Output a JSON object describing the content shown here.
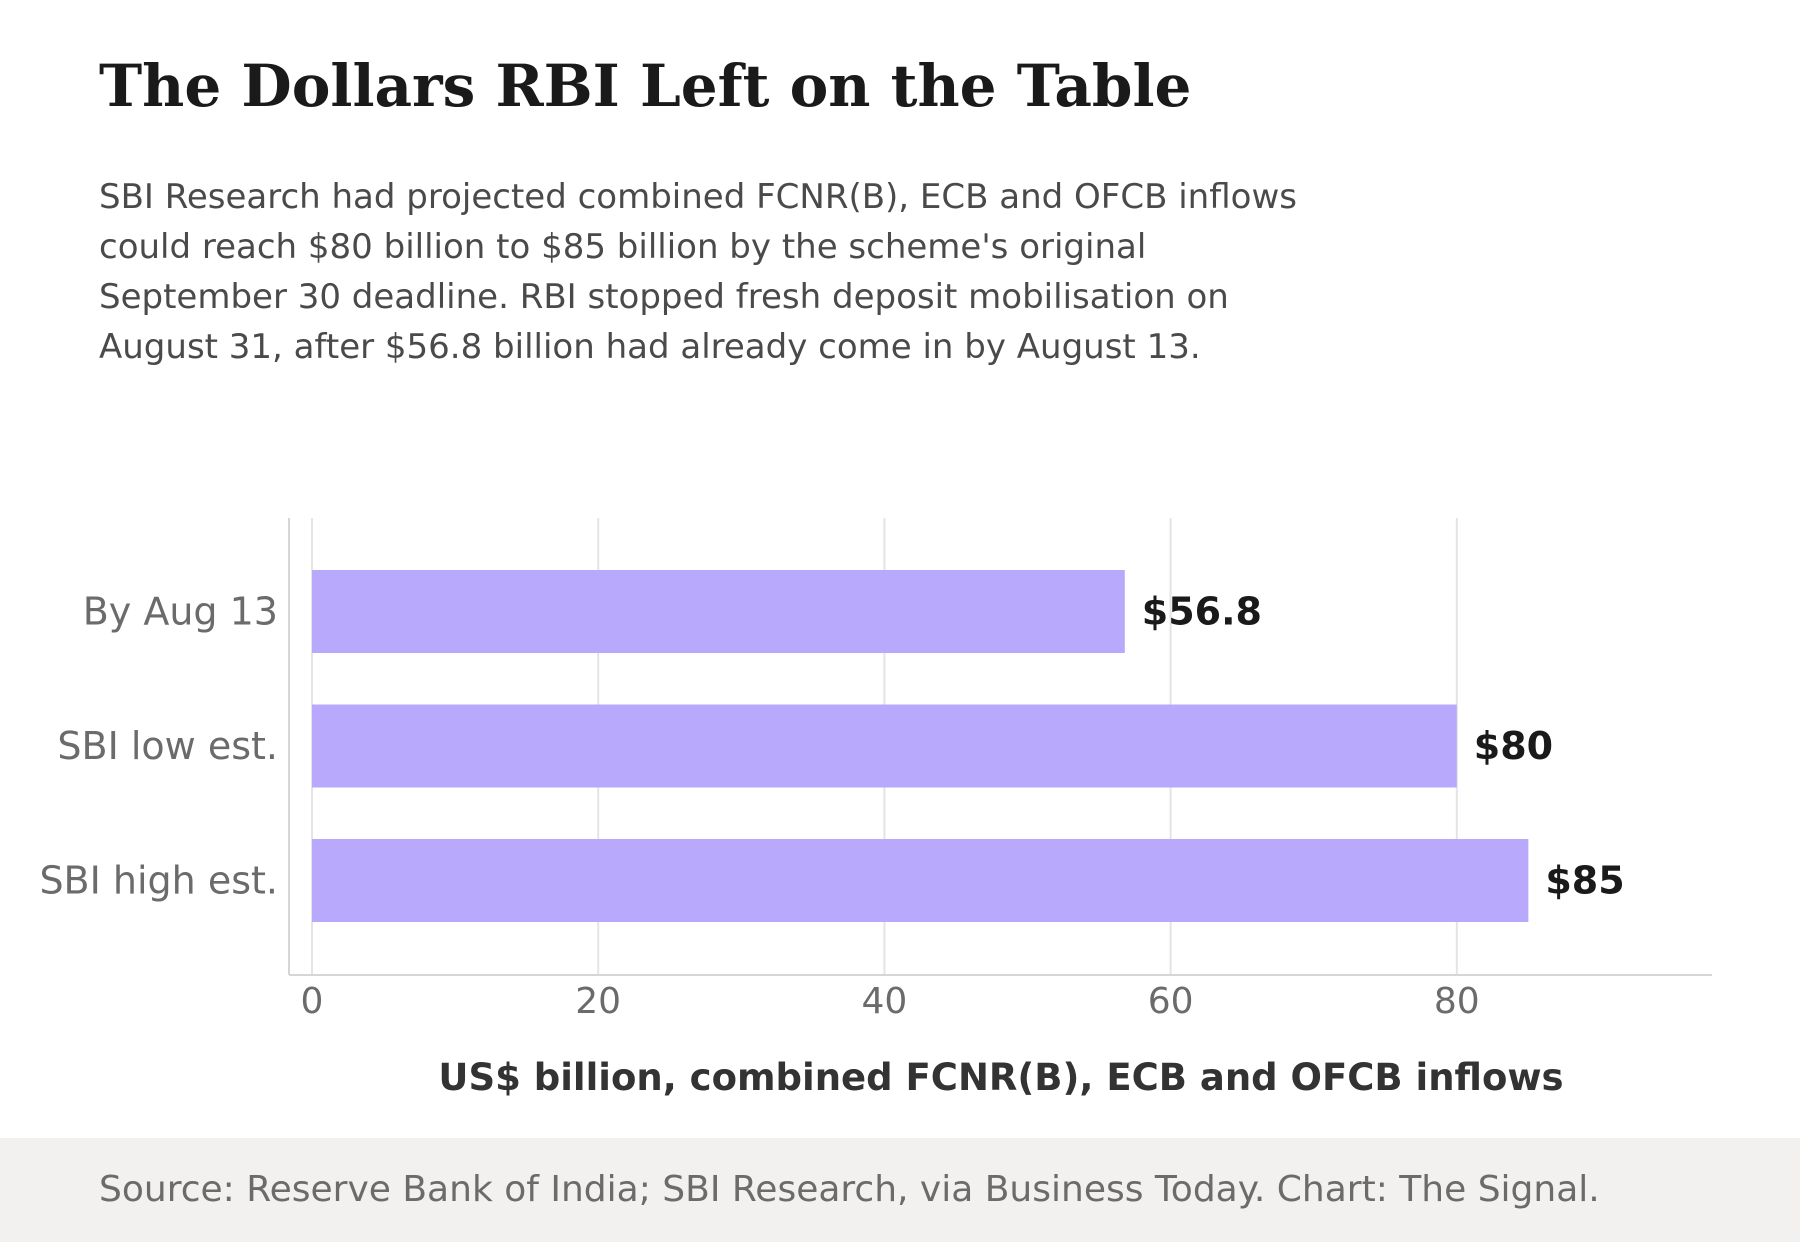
{
  "header": {
    "title": "The Dollars RBI Left on the Table",
    "subtitle_lines": [
      "SBI Research had projected combined FCNR(B), ECB and OFCB inflows",
      "could reach $80 billion to $85 billion by the scheme's original",
      "September 30 deadline. RBI stopped fresh deposit mobilisation on",
      "August 31, after $56.8 billion had already come in by August 13."
    ]
  },
  "chart_data": {
    "type": "bar",
    "orientation": "horizontal",
    "categories": [
      "By Aug 13",
      "SBI low est.",
      "SBI high est."
    ],
    "values": [
      56.8,
      80,
      85
    ],
    "value_labels": [
      "$56.8",
      "$80",
      "$85"
    ],
    "xlabel": "US$ billion, combined FCNR(B), ECB and OFCB inflows",
    "ylabel": "",
    "xlim": [
      0,
      95
    ],
    "xticks": [
      0,
      20,
      40,
      60,
      80
    ],
    "grid": "vertical",
    "bar_color": "#b8a9fc"
  },
  "footer": {
    "source": "Source: Reserve Bank of India; SBI Research, via Business Today. Chart: The Signal."
  }
}
